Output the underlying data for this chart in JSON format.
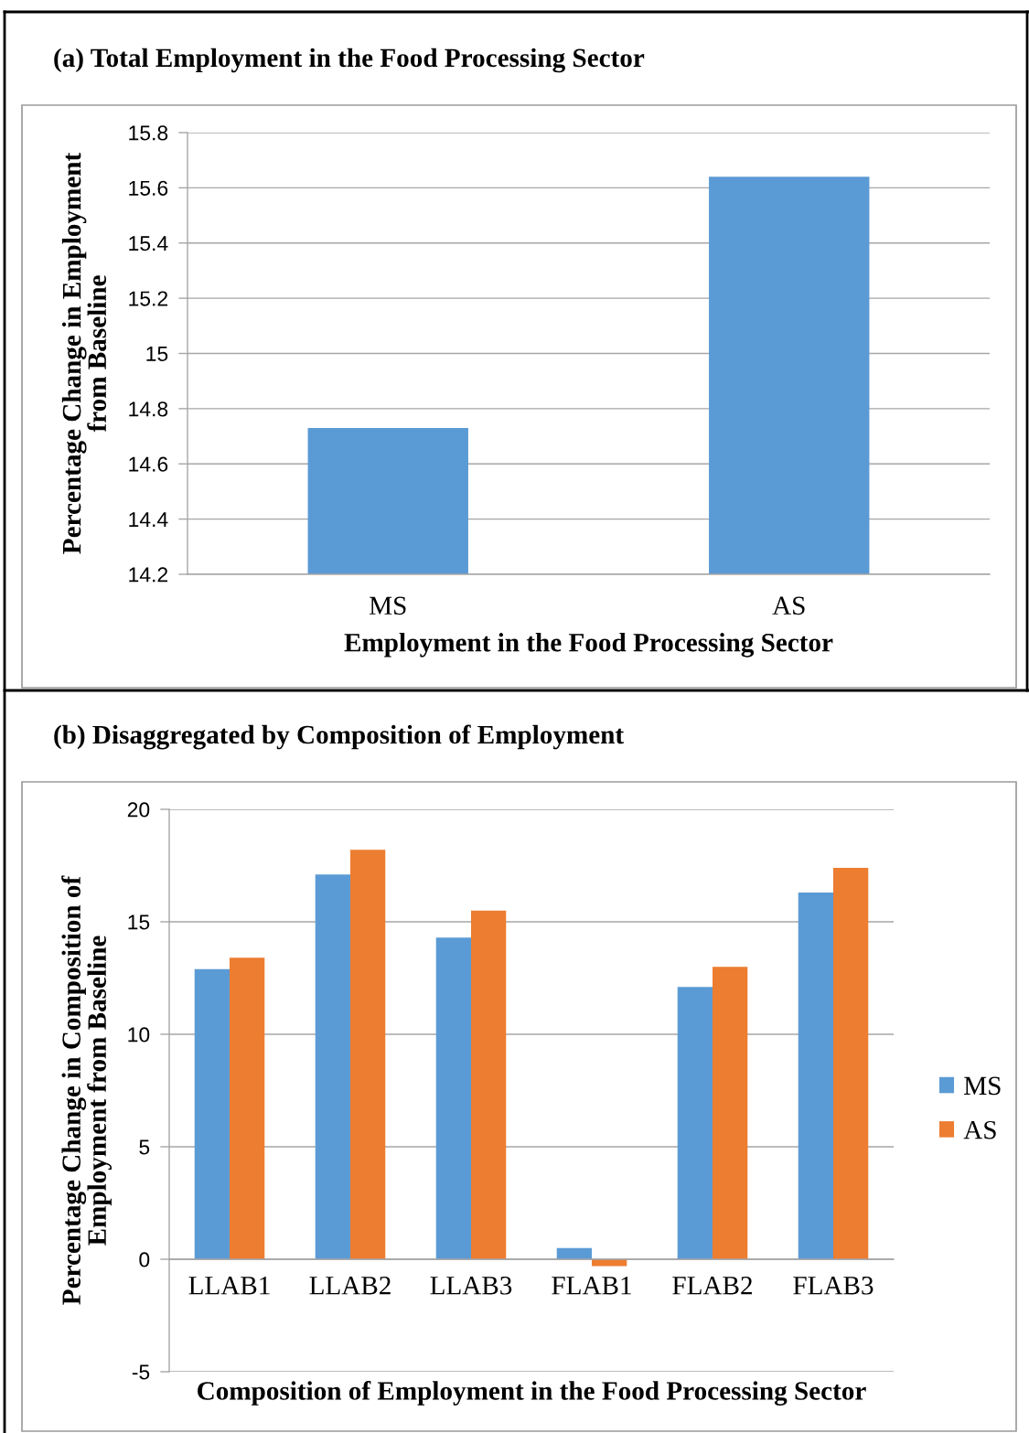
{
  "chart_data": [
    {
      "type": "bar",
      "title": "(a) Total Employment in the Food Processing Sector",
      "xlabel": "Employment in the Food Processing Sector",
      "ylabel": "Percentage Change in Employment\nfrom Baseline",
      "categories": [
        "MS",
        "AS"
      ],
      "values": [
        14.73,
        15.64
      ],
      "color": "#5b9bd5",
      "ylim": [
        14.2,
        15.8
      ],
      "yticks": [
        14.2,
        14.4,
        14.6,
        14.8,
        15,
        15.2,
        15.4,
        15.6,
        15.8
      ],
      "grid": "y"
    },
    {
      "type": "bar",
      "title": "(b) Disaggregated by Composition of Employment",
      "xlabel": "Composition of Employment in the Food Processing Sector",
      "ylabel": "Percentage Change in Composition of\nEmployment from Baseline",
      "categories": [
        "LLAB1",
        "LLAB2",
        "LLAB3",
        "FLAB1",
        "FLAB2",
        "FLAB3"
      ],
      "series": [
        {
          "name": "MS",
          "color": "#5b9bd5",
          "values": [
            12.9,
            17.1,
            14.3,
            0.5,
            12.1,
            16.3
          ]
        },
        {
          "name": "AS",
          "color": "#ed7d31",
          "values": [
            13.4,
            18.2,
            15.5,
            -0.3,
            13.0,
            17.4
          ]
        }
      ],
      "ylim": [
        -5,
        20
      ],
      "yticks": [
        -5,
        0,
        5,
        10,
        15,
        20
      ],
      "grid": "y",
      "legend": "right"
    }
  ]
}
